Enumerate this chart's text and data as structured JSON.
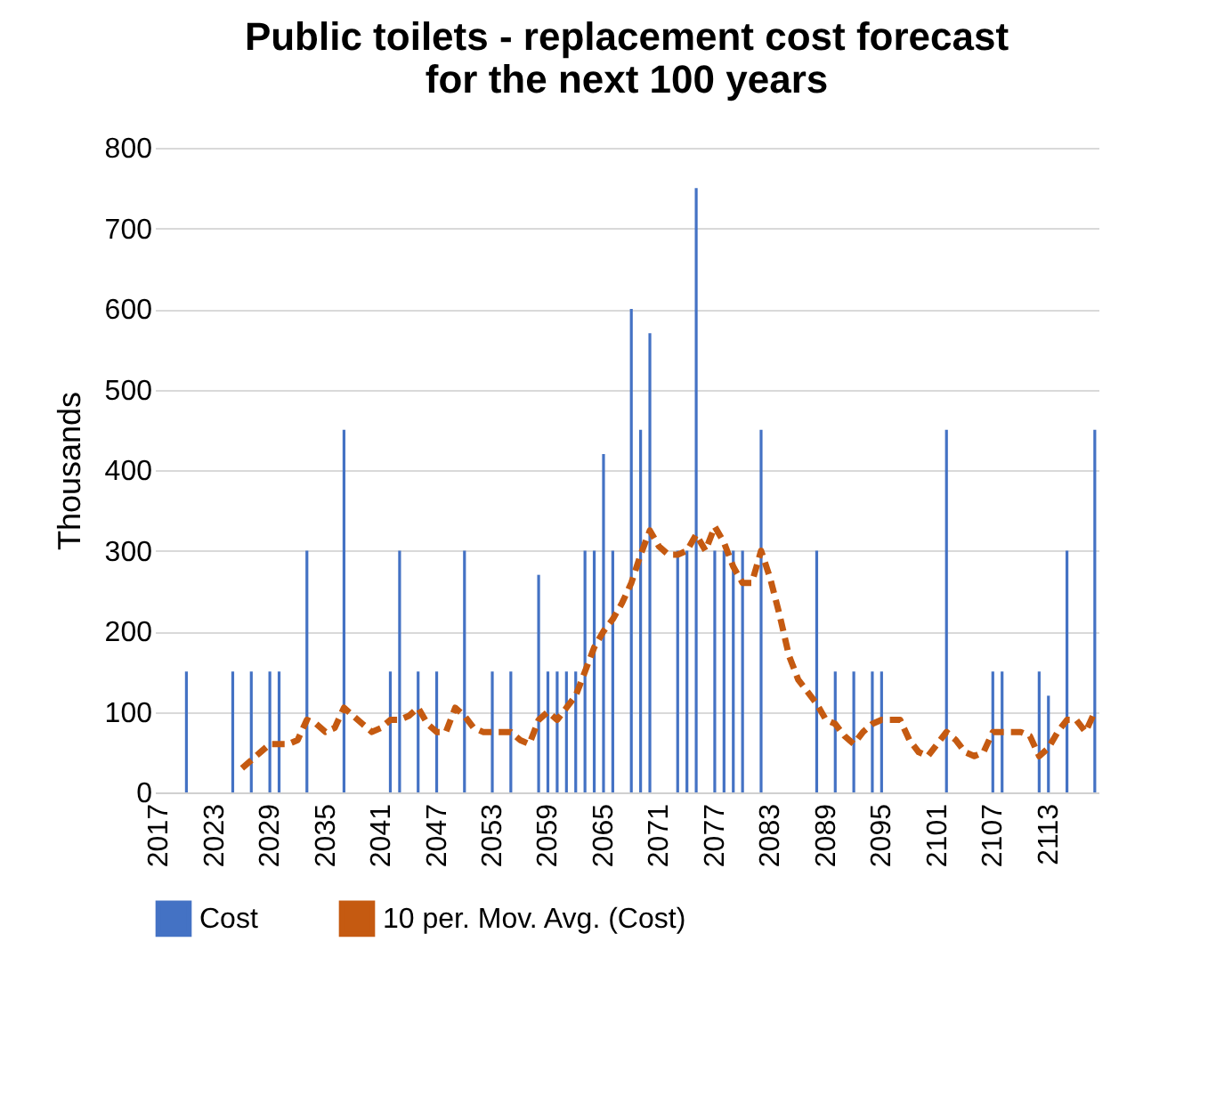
{
  "chart_data": {
    "type": "bar",
    "title": "Public toilets - replacement cost forecast\nfor the next 100 years",
    "ylabel": "Thousands",
    "categories": [
      "2017",
      null,
      null,
      null,
      null,
      null,
      "2023",
      null,
      null,
      null,
      null,
      null,
      "2029",
      null,
      null,
      null,
      null,
      null,
      "2035",
      null,
      null,
      null,
      null,
      null,
      "2041",
      null,
      null,
      null,
      null,
      null,
      "2047",
      null,
      null,
      null,
      null,
      null,
      "2053",
      null,
      null,
      null,
      null,
      null,
      "2059",
      null,
      null,
      null,
      null,
      null,
      "2065",
      null,
      null,
      null,
      null,
      null,
      "2071",
      null,
      null,
      null,
      null,
      null,
      "2077",
      null,
      null,
      null,
      null,
      null,
      "2083",
      null,
      null,
      null,
      null,
      null,
      "2089",
      null,
      null,
      null,
      null,
      null,
      "2095",
      null,
      null,
      null,
      null,
      null,
      "2101",
      null,
      null,
      null,
      null,
      null,
      "2107",
      null,
      null,
      null,
      null,
      null,
      "2113",
      null,
      null,
      null,
      null,
      null
    ],
    "series": [
      {
        "name": "Cost",
        "color": "#4472c4",
        "values": [
          null,
          null,
          null,
          150,
          null,
          null,
          null,
          null,
          150,
          null,
          150,
          null,
          150,
          150,
          null,
          null,
          300,
          null,
          null,
          null,
          450,
          null,
          null,
          null,
          null,
          150,
          300,
          null,
          150,
          null,
          150,
          null,
          null,
          300,
          null,
          null,
          150,
          null,
          150,
          null,
          null,
          270,
          150,
          150,
          150,
          150,
          300,
          300,
          420,
          300,
          null,
          600,
          450,
          570,
          null,
          null,
          300,
          300,
          750,
          null,
          300,
          300,
          300,
          300,
          null,
          450,
          null,
          null,
          null,
          null,
          null,
          300,
          null,
          150,
          null,
          150,
          null,
          150,
          150,
          null,
          null,
          null,
          null,
          null,
          null,
          450,
          null,
          null,
          null,
          null,
          150,
          150,
          null,
          null,
          null,
          150,
          120,
          null,
          300,
          null,
          null,
          450
        ]
      },
      {
        "name": "10 per. Mov. Avg. (Cost)",
        "type": "line",
        "line_style": "dashed",
        "color": "#c55a11",
        "values": [
          null,
          null,
          null,
          null,
          null,
          null,
          null,
          null,
          null,
          30,
          40,
          50,
          60,
          60,
          60,
          65,
          90,
          85,
          75,
          80,
          105,
          95,
          85,
          75,
          80,
          90,
          90,
          95,
          105,
          85,
          75,
          75,
          105,
          95,
          80,
          75,
          75,
          75,
          75,
          65,
          60,
          90,
          100,
          90,
          105,
          120,
          150,
          180,
          200,
          215,
          235,
          260,
          295,
          325,
          305,
          295,
          295,
          300,
          320,
          300,
          330,
          310,
          280,
          260,
          260,
          300,
          265,
          220,
          170,
          140,
          125,
          110,
          90,
          85,
          70,
          60,
          75,
          85,
          90,
          90,
          90,
          65,
          50,
          45,
          60,
          75,
          65,
          50,
          45,
          50,
          75,
          75,
          75,
          75,
          70,
          45,
          55,
          75,
          90,
          90,
          75,
          100
        ]
      }
    ],
    "ylim": [
      0,
      800
    ],
    "yticks": [
      0,
      100,
      200,
      300,
      400,
      500,
      600,
      700,
      800
    ],
    "grid": "y",
    "legend": "bottom"
  }
}
